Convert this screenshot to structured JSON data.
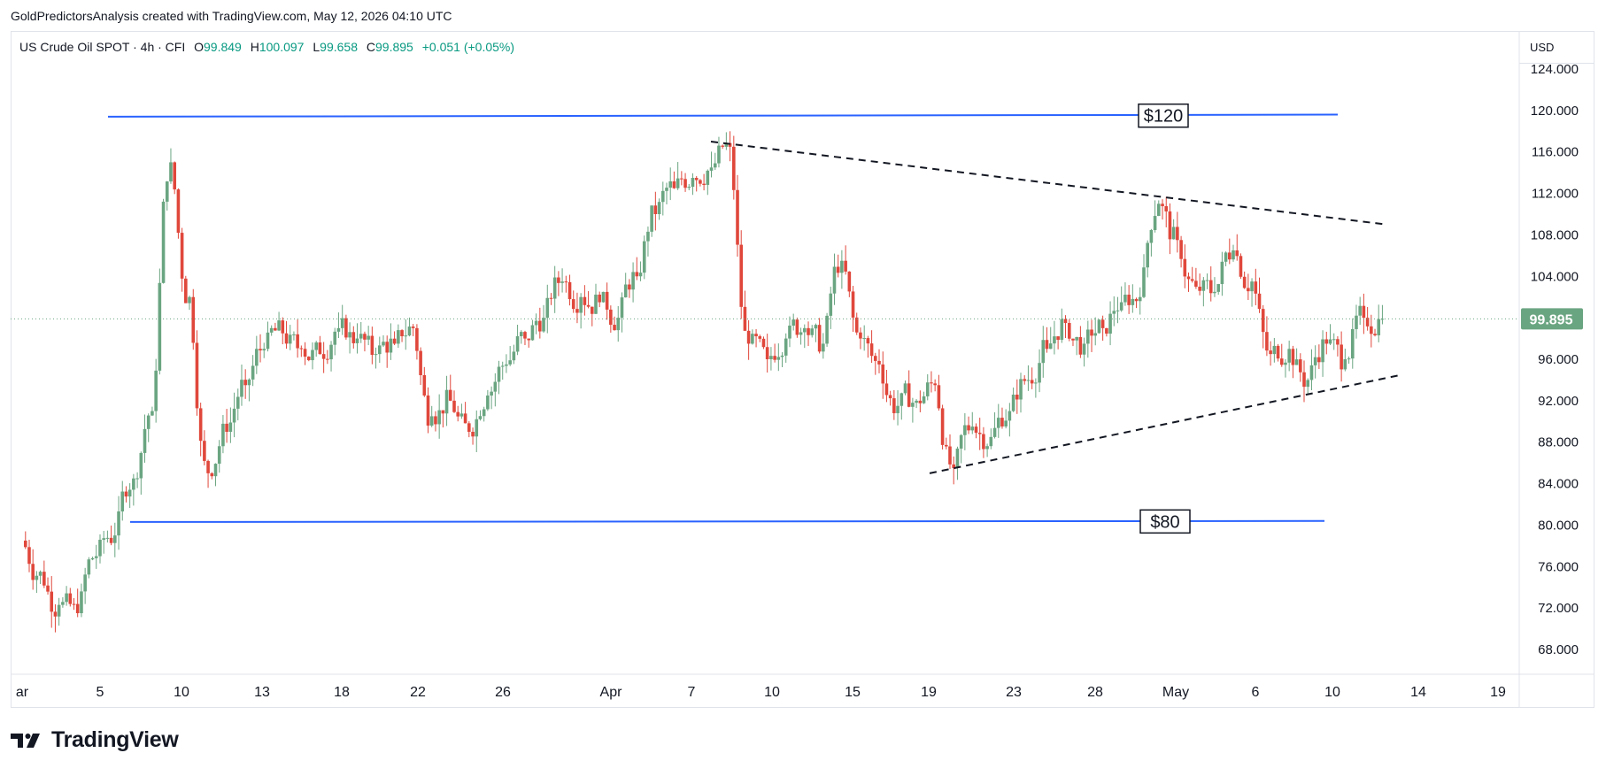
{
  "attribution": "GoldPredictorsAnalysis created with TradingView.com, May 12, 2026 04:10 UTC",
  "legend": {
    "symbol": "US Crude Oil SPOT · 4h · CFI",
    "open": "99.849",
    "high": "100.097",
    "low": "99.658",
    "close": "99.895",
    "change": "+0.051 (+0.05%)",
    "labels": {
      "open": "O",
      "high": "H",
      "low": "L",
      "close": "C"
    }
  },
  "price_axis": {
    "currency": "USD",
    "ticks": [
      "124.000",
      "120.000",
      "116.000",
      "112.000",
      "108.000",
      "104.000",
      "100.000",
      "96.000",
      "92.000",
      "88.000",
      "84.000",
      "80.000",
      "76.000",
      "72.000",
      "68.000"
    ],
    "current_price": "99.895"
  },
  "time_axis": {
    "ticks": [
      "ar",
      "5",
      "10",
      "13",
      "18",
      "22",
      "26",
      "Apr",
      "7",
      "10",
      "15",
      "19",
      "23",
      "28",
      "May",
      "6",
      "10",
      "14",
      "19"
    ]
  },
  "annotations": {
    "upper_label": "$120",
    "lower_label": "$80"
  },
  "brand": {
    "name": "TradingView"
  },
  "colors": {
    "up": "#6aa581",
    "down": "#e0473b",
    "resistance": "#2962ff",
    "trendline": "#131722",
    "price_tag": "#6aa581"
  },
  "chart_data": {
    "type": "candlestick",
    "title": "US Crude Oil SPOT · 4h · CFI",
    "ylim": [
      66,
      127
    ],
    "y_ticks": [
      68,
      72,
      76,
      80,
      84,
      88,
      92,
      96,
      100,
      104,
      108,
      112,
      116,
      120,
      124
    ],
    "horizontal_lines": [
      {
        "label": "$120",
        "value": 119.5
      },
      {
        "label": "$80",
        "value": 80.3
      }
    ],
    "trendlines": [
      {
        "style": "dashed",
        "from": {
          "date": "2026-04-07",
          "price": 117.0
        },
        "to": {
          "date": "2026-05-13",
          "price": 109.0
        }
      },
      {
        "style": "dashed",
        "from": {
          "date": "2026-04-19",
          "price": 85.0
        },
        "to": {
          "date": "2026-05-13",
          "price": 94.5
        }
      }
    ],
    "current_price": 99.895,
    "series": [
      {
        "date": "2026-03-01",
        "close": 75.5
      },
      {
        "date": "2026-03-02",
        "close": 72.3
      },
      {
        "date": "2026-03-03",
        "close": 71.5
      },
      {
        "date": "2026-03-04",
        "close": 77.0
      },
      {
        "date": "2026-03-05",
        "close": 79.0
      },
      {
        "date": "2026-03-06",
        "close": 84.5
      },
      {
        "date": "2026-03-07",
        "close": 91.0
      },
      {
        "date": "2026-03-08",
        "close": 115.0
      },
      {
        "date": "2026-03-09",
        "close": 102.0
      },
      {
        "date": "2026-03-10",
        "close": 85.0
      },
      {
        "date": "2026-03-11",
        "close": 89.0
      },
      {
        "date": "2026-03-12",
        "close": 93.5
      },
      {
        "date": "2026-03-13",
        "close": 97.0
      },
      {
        "date": "2026-03-14",
        "close": 98.5
      },
      {
        "date": "2026-03-15",
        "close": 97.0
      },
      {
        "date": "2026-03-16",
        "close": 96.5
      },
      {
        "date": "2026-03-17",
        "close": 99.0
      },
      {
        "date": "2026-03-18",
        "close": 98.0
      },
      {
        "date": "2026-03-19",
        "close": 96.5
      },
      {
        "date": "2026-03-20",
        "close": 97.5
      },
      {
        "date": "2026-03-21",
        "close": 99.0
      },
      {
        "date": "2026-03-22",
        "close": 90.5
      },
      {
        "date": "2026-03-23",
        "close": 92.0
      },
      {
        "date": "2026-03-24",
        "close": 89.0
      },
      {
        "date": "2026-03-25",
        "close": 92.5
      },
      {
        "date": "2026-03-26",
        "close": 95.5
      },
      {
        "date": "2026-03-27",
        "close": 98.0
      },
      {
        "date": "2026-03-28",
        "close": 100.0
      },
      {
        "date": "2026-03-29",
        "close": 103.5
      },
      {
        "date": "2026-03-30",
        "close": 102.0
      },
      {
        "date": "2026-03-31",
        "close": 101.5
      },
      {
        "date": "2026-04-01",
        "close": 100.0
      },
      {
        "date": "2026-04-02",
        "close": 104.0
      },
      {
        "date": "2026-04-03",
        "close": 110.0
      },
      {
        "date": "2026-04-04",
        "close": 112.5
      },
      {
        "date": "2026-04-05",
        "close": 113.5
      },
      {
        "date": "2026-04-06",
        "close": 114.5
      },
      {
        "date": "2026-04-07",
        "close": 116.5
      },
      {
        "date": "2026-04-08",
        "close": 97.5
      },
      {
        "date": "2026-04-09",
        "close": 96.0
      },
      {
        "date": "2026-04-10",
        "close": 98.0
      },
      {
        "date": "2026-04-11",
        "close": 99.0
      },
      {
        "date": "2026-04-12",
        "close": 97.5
      },
      {
        "date": "2026-04-13",
        "close": 105.5
      },
      {
        "date": "2026-04-14",
        "close": 98.0
      },
      {
        "date": "2026-04-15",
        "close": 95.5
      },
      {
        "date": "2026-04-16",
        "close": 91.5
      },
      {
        "date": "2026-04-17",
        "close": 92.0
      },
      {
        "date": "2026-04-18",
        "close": 93.5
      },
      {
        "date": "2026-04-19",
        "close": 85.5
      },
      {
        "date": "2026-04-20",
        "close": 89.5
      },
      {
        "date": "2026-04-21",
        "close": 88.5
      },
      {
        "date": "2026-04-22",
        "close": 91.0
      },
      {
        "date": "2026-04-23",
        "close": 94.0
      },
      {
        "date": "2026-04-24",
        "close": 97.0
      },
      {
        "date": "2026-04-25",
        "close": 99.5
      },
      {
        "date": "2026-04-26",
        "close": 97.5
      },
      {
        "date": "2026-04-27",
        "close": 99.0
      },
      {
        "date": "2026-04-28",
        "close": 101.5
      },
      {
        "date": "2026-04-29",
        "close": 102.0
      },
      {
        "date": "2026-04-30",
        "close": 111.0
      },
      {
        "date": "2026-05-01",
        "close": 107.5
      },
      {
        "date": "2026-05-02",
        "close": 103.0
      },
      {
        "date": "2026-05-03",
        "close": 102.5
      },
      {
        "date": "2026-05-04",
        "close": 106.5
      },
      {
        "date": "2026-05-05",
        "close": 103.5
      },
      {
        "date": "2026-05-06",
        "close": 96.5
      },
      {
        "date": "2026-05-07",
        "close": 97.0
      },
      {
        "date": "2026-05-08",
        "close": 94.0
      },
      {
        "date": "2026-05-09",
        "close": 97.5
      },
      {
        "date": "2026-05-10",
        "close": 96.0
      },
      {
        "date": "2026-05-11",
        "close": 100.0
      },
      {
        "date": "2026-05-12",
        "close": 99.9
      }
    ]
  }
}
